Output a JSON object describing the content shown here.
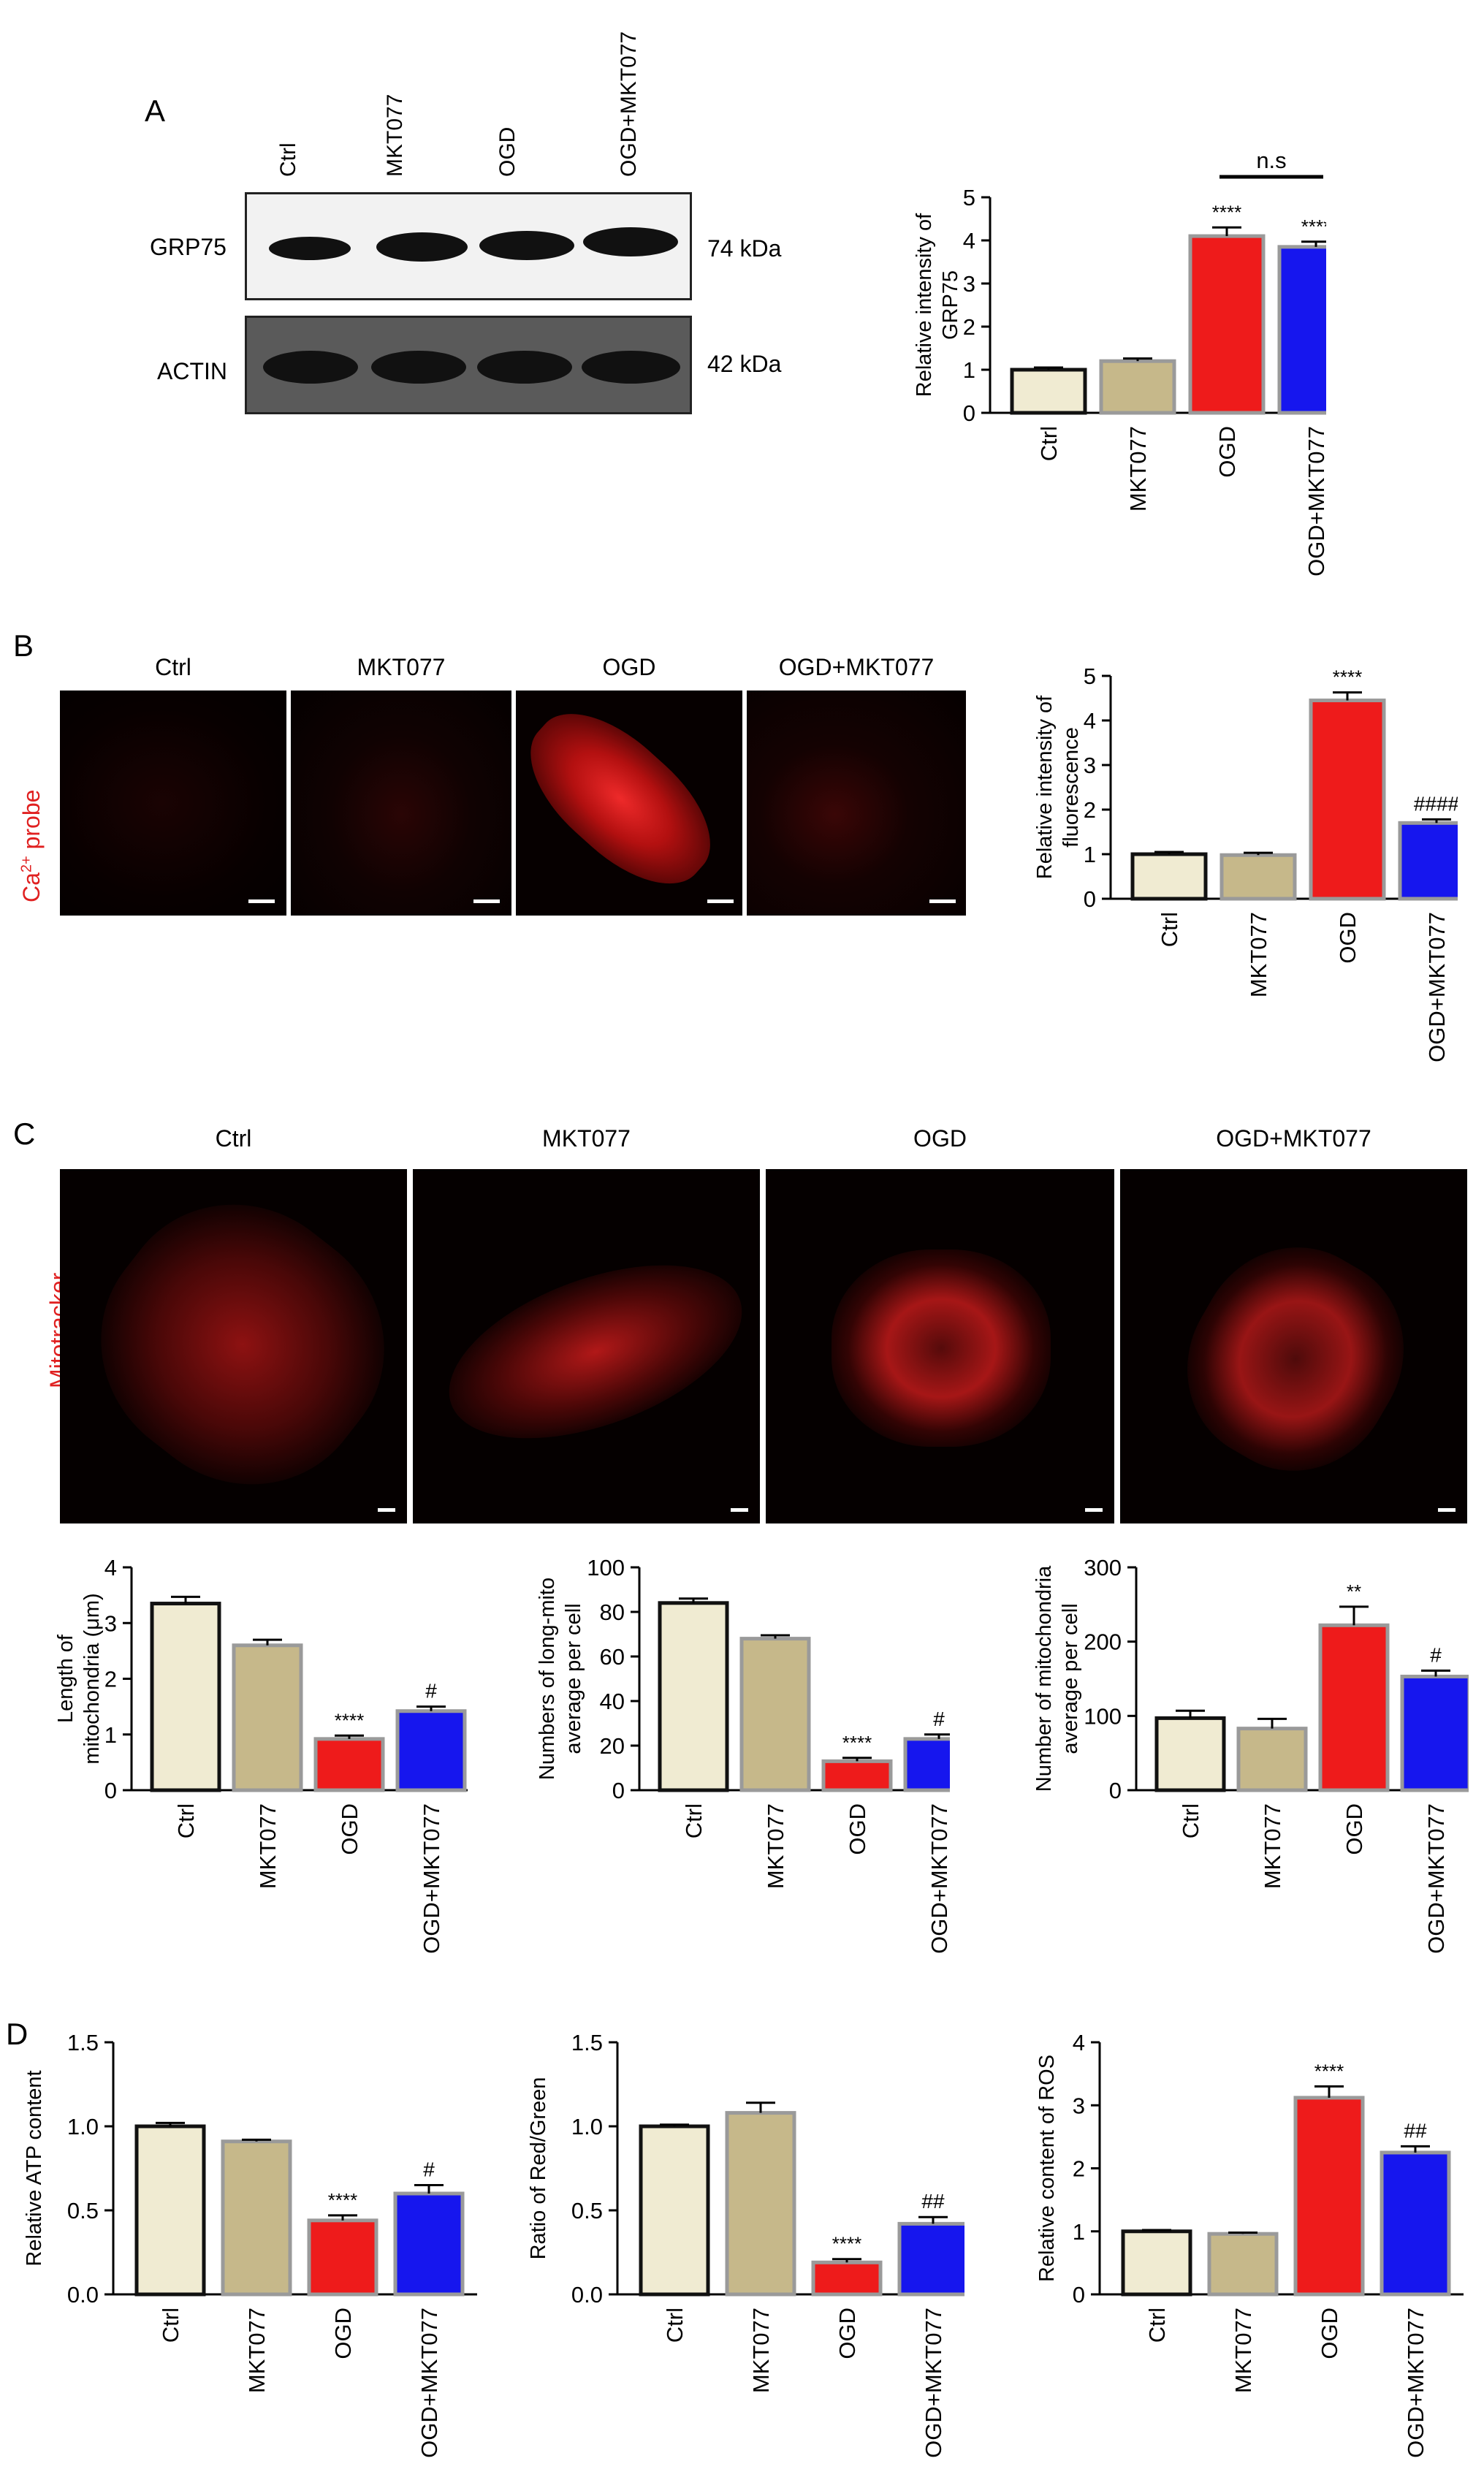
{
  "panels": {
    "A": {
      "label": "A",
      "lanes": [
        "Ctrl",
        "MKT077",
        "OGD",
        "OGD+MKT077"
      ],
      "blots": [
        {
          "name": "GRP75",
          "kda": "74 kDa"
        },
        {
          "name": "ACTIN",
          "kda": "42 kDa"
        }
      ]
    },
    "B": {
      "label": "B",
      "columns": [
        "Ctrl",
        "MKT077",
        "OGD",
        "OGD+MKT077"
      ],
      "probe_label": {
        "ion": "Ca",
        "sup": "2+",
        "rest": "probe"
      }
    },
    "C": {
      "label": "C",
      "columns": [
        "Ctrl",
        "MKT077",
        "OGD",
        "OGD+MKT077"
      ],
      "side_label": "Mitotracker"
    },
    "D": {
      "label": "D"
    }
  },
  "colors": {
    "Ctrl": "#f0ebd2",
    "MKT077": "#c6b88a",
    "OGD": "#ee1b1b",
    "OGD+MKT077": "#1616ee",
    "bar_outline": "#9a9a9a",
    "edge_black": "#111111"
  },
  "chart_data": [
    {
      "id": "grp75",
      "type": "bar",
      "categories": [
        "Ctrl",
        "MKT077",
        "OGD",
        "OGD+MKT077"
      ],
      "values": [
        1.0,
        1.2,
        4.1,
        3.85
      ],
      "errors": [
        0.05,
        0.06,
        0.2,
        0.12
      ],
      "annotations": [
        "",
        "",
        "****",
        "****"
      ],
      "bracket": {
        "from": 2,
        "to": 3,
        "text": "n.s"
      },
      "ylabel": [
        "Relative intensity of",
        "GRP75"
      ],
      "ylim": [
        0,
        5
      ],
      "yticks": [
        "0",
        "1",
        "2",
        "3",
        "4",
        "5"
      ]
    },
    {
      "id": "ca-fluorescence",
      "type": "bar",
      "categories": [
        "Ctrl",
        "MKT077",
        "OGD",
        "OGD+MKT077"
      ],
      "values": [
        1.0,
        0.98,
        4.45,
        1.7
      ],
      "errors": [
        0.05,
        0.05,
        0.18,
        0.08
      ],
      "annotations": [
        "",
        "",
        "****",
        "####"
      ],
      "ylabel": [
        "Relative intensity of",
        "fluorescence"
      ],
      "ylim": [
        0,
        5
      ],
      "yticks": [
        "0",
        "1",
        "2",
        "3",
        "4",
        "5"
      ]
    },
    {
      "id": "mito-length",
      "type": "bar",
      "categories": [
        "Ctrl",
        "MKT077",
        "OGD",
        "OGD+MKT077"
      ],
      "values": [
        3.35,
        2.6,
        0.92,
        1.42
      ],
      "errors": [
        0.12,
        0.1,
        0.06,
        0.08
      ],
      "annotations": [
        "",
        "",
        "****",
        "#"
      ],
      "ylabel": [
        "Length of",
        "mitochondria (μm)"
      ],
      "ylim": [
        0,
        4
      ],
      "yticks": [
        "0",
        "1",
        "2",
        "3",
        "4"
      ]
    },
    {
      "id": "long-mito",
      "type": "bar",
      "categories": [
        "Ctrl",
        "MKT077",
        "OGD",
        "OGD+MKT077"
      ],
      "values": [
        84,
        68,
        13,
        23
      ],
      "errors": [
        2,
        1.5,
        1.5,
        2
      ],
      "annotations": [
        "",
        "",
        "****",
        "#"
      ],
      "ylabel": [
        "Numbers of long-mito",
        "average per cell"
      ],
      "ylim": [
        0,
        100
      ],
      "yticks": [
        "0",
        "20",
        "40",
        "60",
        "80",
        "100"
      ]
    },
    {
      "id": "mito-number",
      "type": "bar",
      "categories": [
        "Ctrl",
        "MKT077",
        "OGD",
        "OGD+MKT077"
      ],
      "values": [
        97,
        83,
        222,
        153
      ],
      "errors": [
        10,
        13,
        25,
        8
      ],
      "annotations": [
        "",
        "",
        "**",
        "#"
      ],
      "ylabel": [
        "Number of mitochondria",
        "average per cell"
      ],
      "ylim": [
        0,
        300
      ],
      "yticks": [
        "0",
        "100",
        "200",
        "300"
      ]
    },
    {
      "id": "atp",
      "type": "bar",
      "categories": [
        "Ctrl",
        "MKT077",
        "OGD",
        "OGD+MKT077"
      ],
      "values": [
        1.0,
        0.91,
        0.44,
        0.6
      ],
      "errors": [
        0.02,
        0.01,
        0.03,
        0.05
      ],
      "annotations": [
        "",
        "",
        "****",
        "#"
      ],
      "ylabel": [
        "Relative ATP content"
      ],
      "ylim": [
        0,
        1.5
      ],
      "yticks": [
        "0.0",
        "0.5",
        "1.0",
        "1.5"
      ]
    },
    {
      "id": "red-green",
      "type": "bar",
      "categories": [
        "Ctrl",
        "MKT077",
        "OGD",
        "OGD+MKT077"
      ],
      "values": [
        1.0,
        1.08,
        0.19,
        0.42
      ],
      "errors": [
        0.01,
        0.06,
        0.02,
        0.04
      ],
      "annotations": [
        "",
        "",
        "****",
        "##"
      ],
      "ylabel": [
        "Ratio of Red/Green"
      ],
      "ylim": [
        0,
        1.5
      ],
      "yticks": [
        "0.0",
        "0.5",
        "1.0",
        "1.5"
      ]
    },
    {
      "id": "ros",
      "type": "bar",
      "categories": [
        "Ctrl",
        "MKT077",
        "OGD",
        "OGD+MKT077"
      ],
      "values": [
        1.0,
        0.96,
        3.12,
        2.25
      ],
      "errors": [
        0.02,
        0.02,
        0.18,
        0.1
      ],
      "annotations": [
        "",
        "",
        "****",
        "##"
      ],
      "ylabel": [
        "Relative content of ROS"
      ],
      "ylim": [
        0,
        4
      ],
      "yticks": [
        "0",
        "1",
        "2",
        "3",
        "4"
      ]
    }
  ]
}
